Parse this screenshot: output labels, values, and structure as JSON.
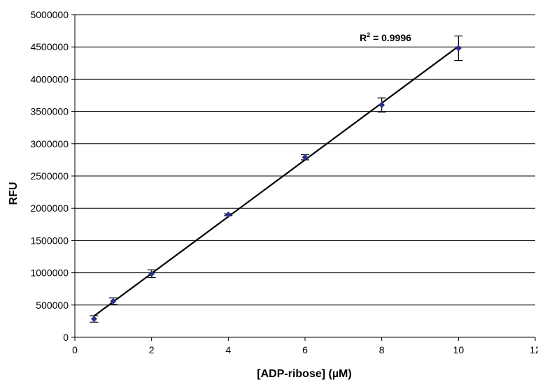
{
  "chart_data": {
    "type": "scatter",
    "title": "",
    "xlabel": "[ADP-ribose] (µM)",
    "ylabel": "RFU",
    "xlim": [
      0,
      12
    ],
    "ylim": [
      0,
      5000000
    ],
    "x_ticks": [
      0,
      2,
      4,
      6,
      8,
      10,
      12
    ],
    "y_ticks": [
      0,
      500000,
      1000000,
      1500000,
      2000000,
      2500000,
      3000000,
      3500000,
      4000000,
      4500000,
      5000000
    ],
    "x_tick_labels": [
      "0",
      "2",
      "4",
      "6",
      "8",
      "10",
      "12"
    ],
    "y_tick_labels": [
      "0",
      "500000",
      "1000000",
      "1500000",
      "2000000",
      "2500000",
      "3000000",
      "3500000",
      "4000000",
      "4500000",
      "5000000"
    ],
    "grid": "horizontal",
    "legend": "none",
    "series": [
      {
        "x": [
          0.5,
          1,
          2,
          4,
          6,
          8,
          10
        ],
        "y": [
          285000,
          560000,
          985000,
          1900000,
          2790000,
          3600000,
          4480000
        ],
        "error": [
          50000,
          50000,
          60000,
          15000,
          40000,
          110000,
          190000
        ],
        "marker_color": "#2b2f8c"
      }
    ],
    "trendline": {
      "type": "linear",
      "x": [
        0.5,
        10
      ],
      "y": [
        330000,
        4510000
      ],
      "color": "#000000"
    },
    "annotation": {
      "r_label": "R",
      "r_sup": "2",
      "r_value": " = 0.9996"
    }
  }
}
